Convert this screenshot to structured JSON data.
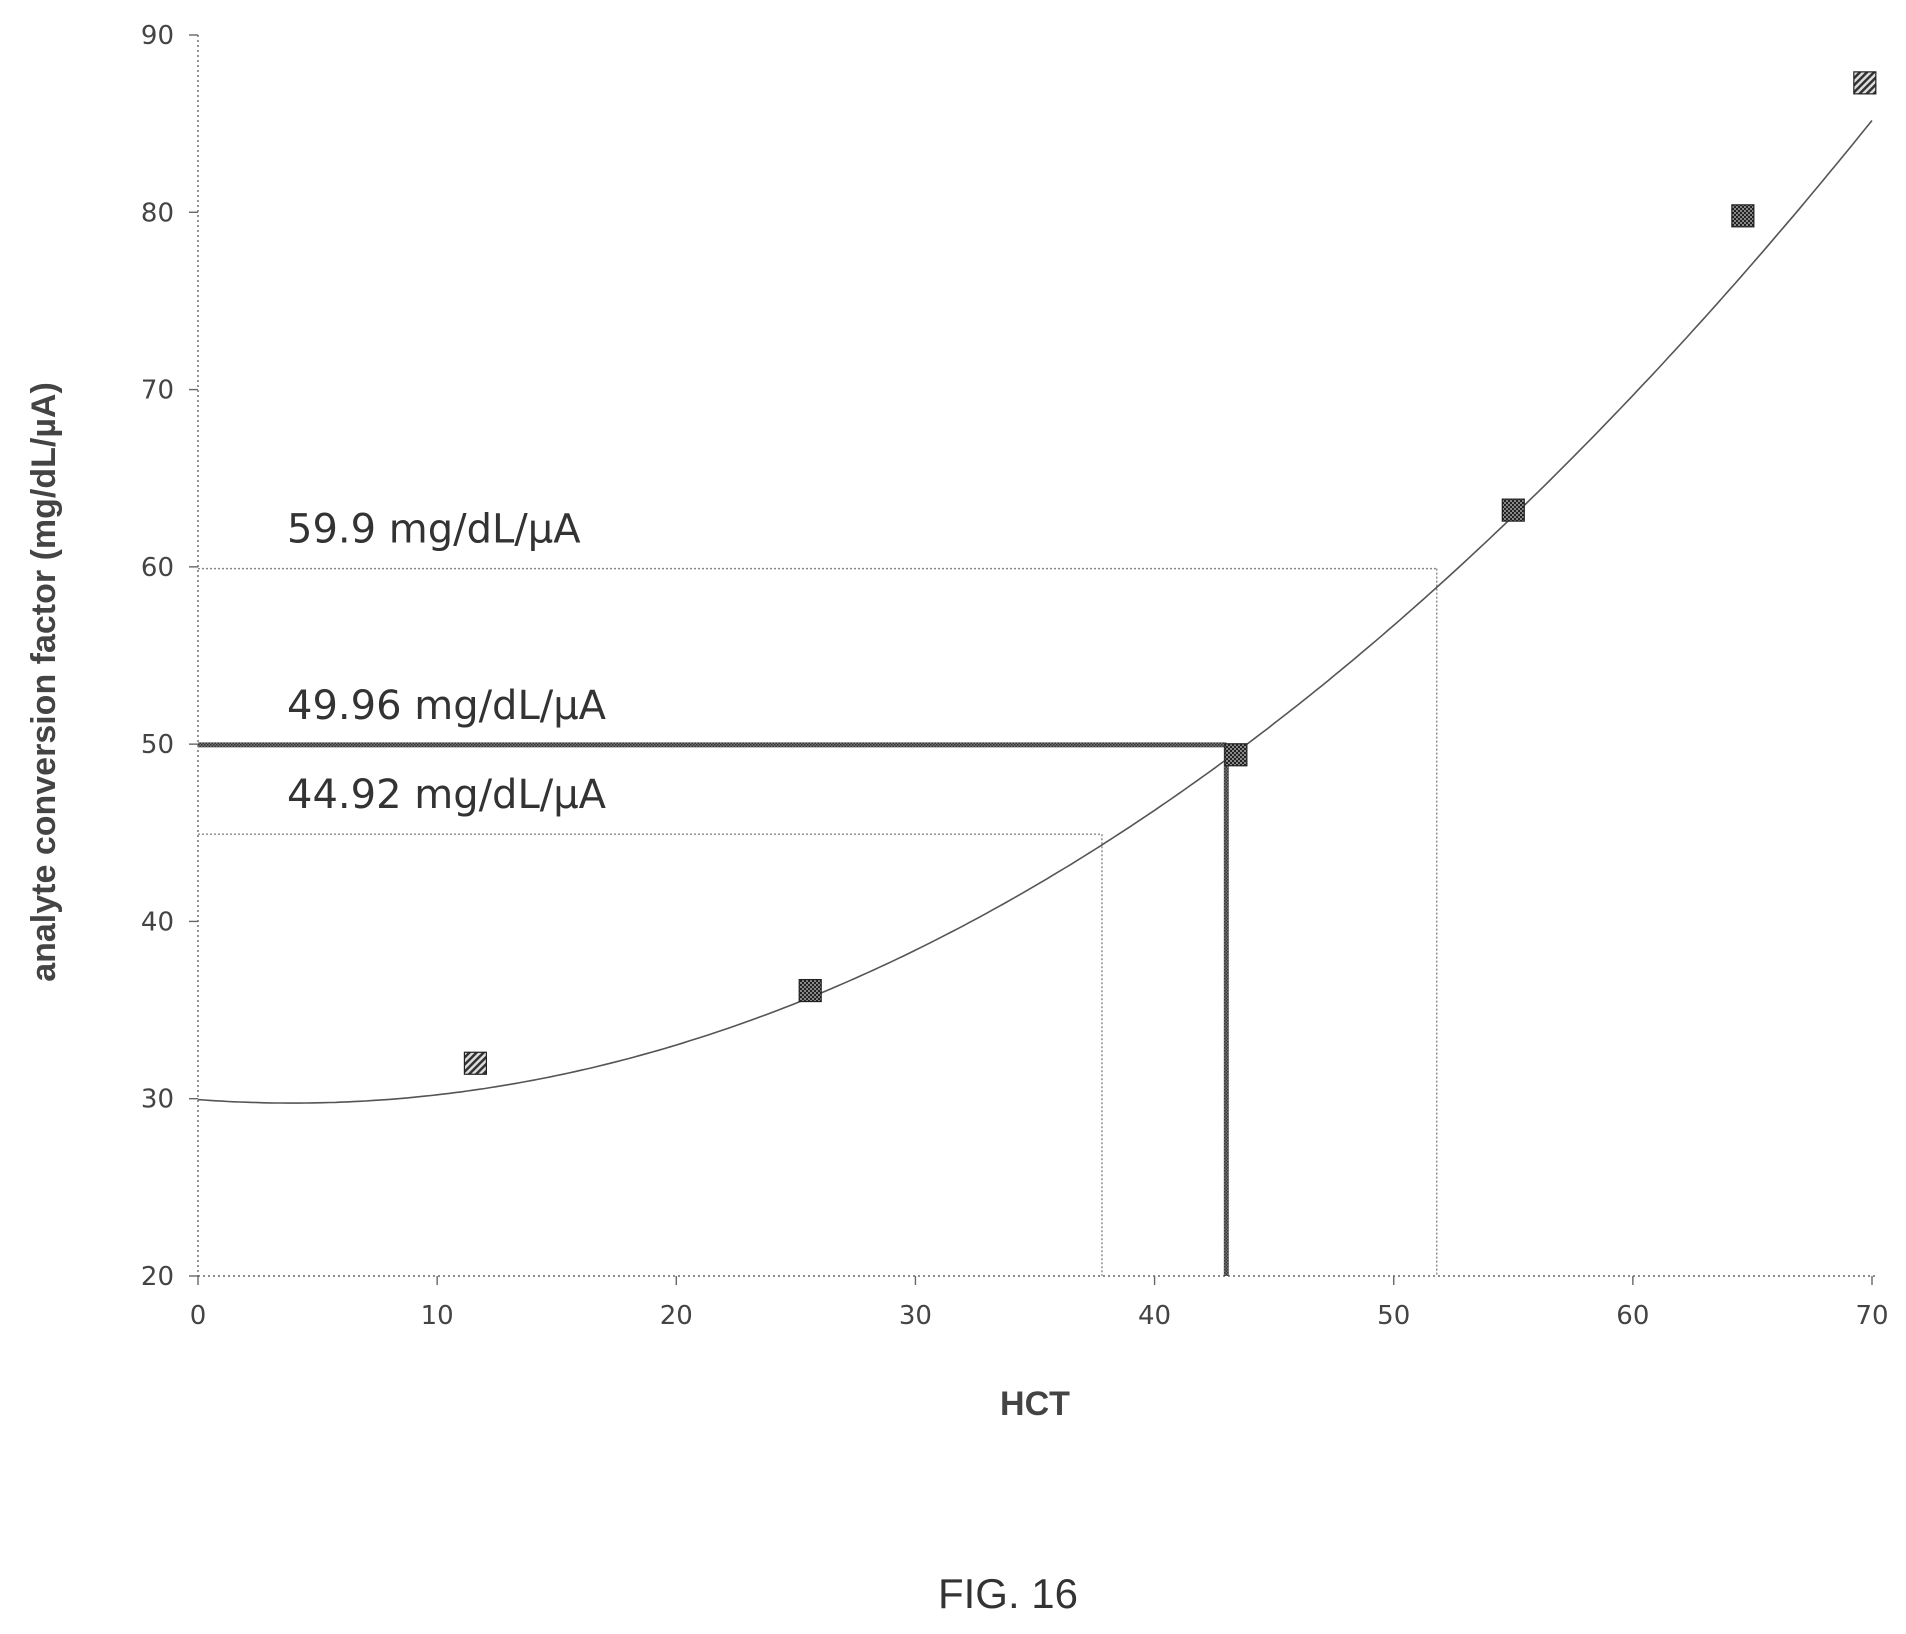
{
  "chart_data": {
    "type": "scatter",
    "title": "",
    "xlabel": "HCT",
    "ylabel": "analyte conversion factor (mg/dL/µA)",
    "xlim": [
      0,
      70
    ],
    "ylim": [
      20,
      90
    ],
    "x_ticks": [
      0,
      10,
      20,
      30,
      40,
      50,
      60,
      70
    ],
    "y_ticks": [
      20,
      30,
      40,
      50,
      60,
      70,
      80,
      90
    ],
    "grid": false,
    "legend": "none",
    "points": [
      {
        "x": 11.6,
        "y": 32.0,
        "pattern": "hatch"
      },
      {
        "x": 25.6,
        "y": 36.1,
        "pattern": "cross"
      },
      {
        "x": 43.4,
        "y": 49.4,
        "pattern": "cross"
      },
      {
        "x": 55.0,
        "y": 63.2,
        "pattern": "cross"
      },
      {
        "x": 64.6,
        "y": 79.8,
        "pattern": "cross"
      },
      {
        "x": 69.7,
        "y": 87.3,
        "pattern": "hatch"
      }
    ],
    "fit_curve": {
      "type": "polynomial",
      "degree": 2,
      "coefficients": [
        0.0127,
        -0.1,
        29.95
      ]
    },
    "reference_lines": [
      {
        "label": "59.9 mg/dL/μA",
        "y": 59.9,
        "x": 51.8,
        "emphasis": false
      },
      {
        "label": "49.96 mg/dL/μA",
        "y": 49.96,
        "x": 43.0,
        "emphasis": true
      },
      {
        "label": "44.92 mg/dL/μA",
        "y": 44.92,
        "x": 37.8,
        "emphasis": false
      }
    ]
  },
  "figure_label": "FIG. 16"
}
